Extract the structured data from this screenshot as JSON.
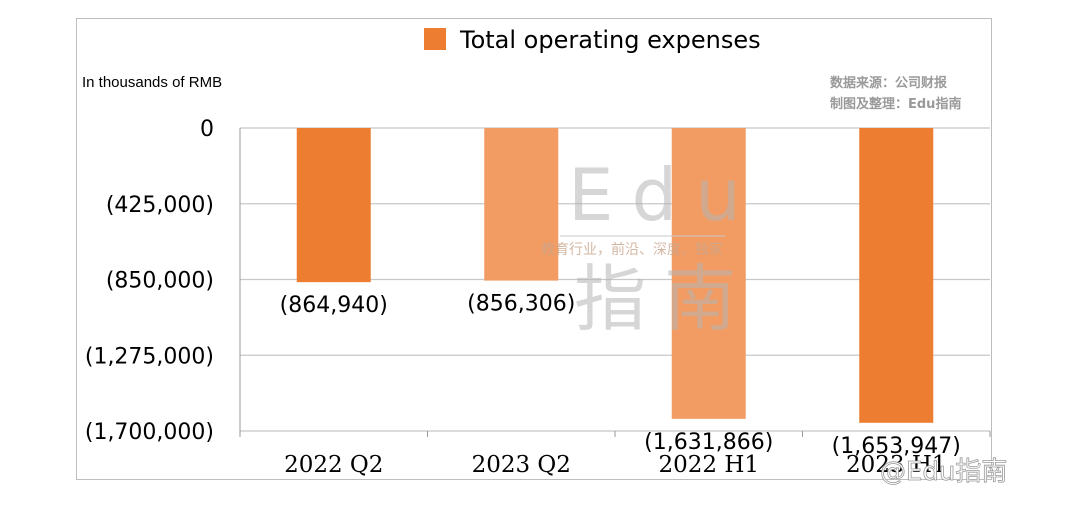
{
  "chart_data": {
    "type": "bar",
    "legend": "Total operating expenses",
    "unit_label": "In thousands of RMB",
    "source_lines": [
      "数据来源：公司财报",
      "制图及整理：Edu指南"
    ],
    "categories": [
      "2022 Q2",
      "2023 Q2",
      "2022 H1",
      "2023 H1"
    ],
    "values": [
      -864940,
      -856306,
      -1631866,
      -1653947
    ],
    "data_labels": [
      "(864,940)",
      "(856,306)",
      "(1,631,866)",
      "(1,653,947)"
    ],
    "bar_colors": [
      "#ed7d31",
      "#f29c63",
      "#f29c63",
      "#ed7d31"
    ],
    "y_ticks": [
      0,
      -425000,
      -850000,
      -1275000,
      -1700000
    ],
    "y_tick_labels": [
      "0",
      "(425,000)",
      "(850,000)",
      "(1,275,000)",
      "(1,700,000)"
    ],
    "ylim": [
      -1700000,
      0
    ],
    "grid": true
  },
  "watermark": {
    "big_top": "Edu",
    "tagline": "教育行业，前沿、深度、独家",
    "big_bottom": "指南",
    "corner": "@Edu指南"
  },
  "colors": {
    "legend_swatch": "#ed7d31",
    "grid": "#c8c8c8",
    "axis": "#9a9a9a"
  }
}
